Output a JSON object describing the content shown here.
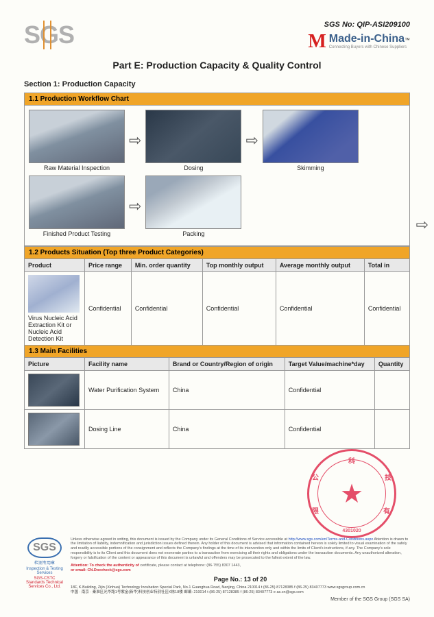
{
  "header": {
    "sgs_logo": "SGS",
    "sgs_no_label": "SGS No:",
    "sgs_no": "QIP-ASI209100",
    "mic_m": "M",
    "mic_name": "Made-in-China",
    "mic_tm": "™",
    "mic_tag": "Connecting Buyers with Chinese Suppliers"
  },
  "title": "Part E: Production Capacity & Quality Control",
  "section1": "Section 1: Production Capacity",
  "bar11": "1.1 Production Workflow Chart",
  "workflow": {
    "s1": "Raw Material Inspection",
    "s2": "Dosing",
    "s3": "Skimming",
    "s4": "Finished Product Testing",
    "s5": "Packing"
  },
  "arrow": "⇨",
  "bar12": "1.2 Products Situation (Top three Product Categories)",
  "t12": {
    "h1": "Product",
    "h2": "Price range",
    "h3": "Min. order quantity",
    "h4": "Top monthly output",
    "h5": "Average monthly output",
    "h6": "Total in",
    "prod": "Virus Nucleic Acid Extraction Kit or Nucleic Acid Detection Kit",
    "conf": "Confidential"
  },
  "bar13": "1.3 Main Facilities",
  "t13": {
    "h1": "Picture",
    "h2": "Facility name",
    "h3": "Brand or Country/Region of origin",
    "h4": "Target Value/machine*day",
    "h5": "Quantity",
    "r1f": "Water Purification System",
    "r1b": "China",
    "r1t": "Confidential",
    "r2f": "Dosing Line",
    "r2b": "China",
    "r2t": "Confidential"
  },
  "stamp": {
    "c1": "科",
    "c2": "技",
    "c3": "有",
    "c4": "4301020",
    "c5": "限",
    "c6": "公"
  },
  "footer": {
    "disc1": "Unless otherwise agreed in writing, this document is issued by the Company under its General Conditions of Service accessible at ",
    "disc_link": "http://www.sgs.com/en/Terms-and-Conditions.aspx",
    "disc2": " Attention is drawn to the limitation of liability, indemnification and jurisdiction issues defined therein. Any holder of this document is advised that information contained hereon is solely limited to visual examination of the safely and readily accessible portions of the consignment and reflects the Company's findings at the time of its intervention only and within the limits of Client's instructions, if any. The Company's sole responsibility is to its Client and this document does not exonerate parties to a transaction from exercising all their rights and obligations under the transaction documents. Any unauthorized alteration, forgery or falsification of the content or appearance of this document is unlawful and offenders may be prosecuted to the fullest extent of the law.",
    "att1": "Attention: To check the authenticity of",
    "att2": "certificate, please contact at telephone: (86-755) 8307 1443,",
    "att3": "or email: CN.Doccheck@sgs.com",
    "cn1": "检测专用章",
    "cn2": "Inspection & Testing Services",
    "cn3": "SGS-CSTC Standards Technical Services Co., Ltd.",
    "addr": "18F, K.Building, Zijin (Xinhua) Technology Incubation Special Park, No.1 Guanghua Road, Nanjing, China  210014    t (86-25) 87128385   f (86-25) 83407773   www.sgsgroup.com.cn",
    "addr_cn": "中国 · 南京 · 秦淮区光华路1号紫金(新华)科技创业特别社区K栋18楼   邮编: 210014    t (86-25) 87128385   f (86-25) 83407773   e as.cn@sgs.com",
    "page": "Page No.: 13 of 20",
    "member": "Member of the SGS Group (SGS SA)"
  }
}
